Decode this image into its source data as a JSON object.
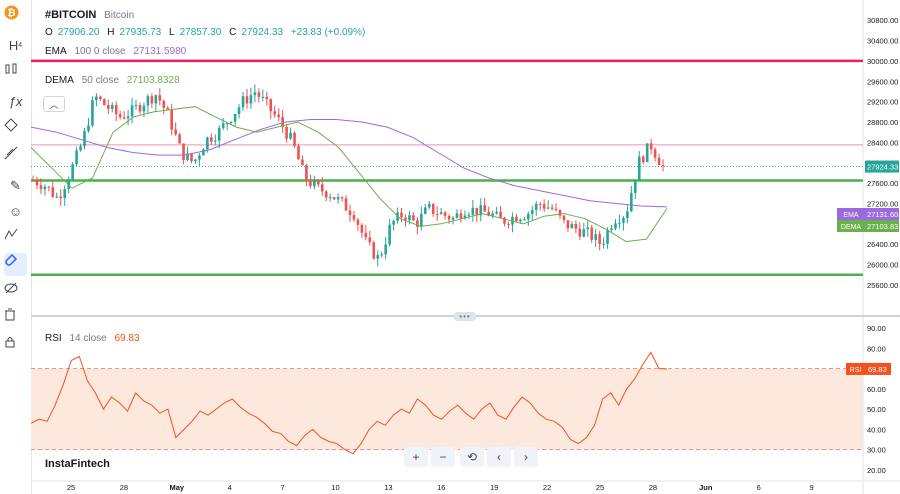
{
  "legend": {
    "symbol": "#BITCOIN",
    "name": "Bitcoin",
    "o_label": "O",
    "o": "27906.20",
    "h_label": "H",
    "h": "27935.73",
    "l_label": "L",
    "l": "27857.30",
    "c_label": "C",
    "c": "27924.33",
    "change": "+23.83 (+0.09%)",
    "ema_label": "EMA",
    "ema_params": "100 0 close",
    "ema_value": "27131.5980",
    "dema_label": "DEMA",
    "dema_params": "50 close",
    "dema_value": "27103.8328",
    "rsi_label": "RSI",
    "rsi_params": "14 close",
    "rsi_value": "69.83"
  },
  "price_badges": {
    "last": "27924.33",
    "ema_tag": "EMA",
    "ema": "27131.60",
    "dema_tag": "DEMA",
    "dema": "27103.83",
    "rsi_tag": "RSI",
    "rsi": "69.83"
  },
  "watermark": "InstaFintech",
  "toolbar_icons": [
    "bitcoin-logo-icon",
    "h4-icon",
    "candles-icon",
    "fx-icon",
    "nodes-icon",
    "crosshair-icon",
    "brush-icon",
    "emoji-icon",
    "measure-icon",
    "magnet-icon",
    "eye-off-icon",
    "trash-icon",
    "lock-icon"
  ],
  "nav_buttons": {
    "zoom_in": "+",
    "zoom_out": "−",
    "reset": "⟲",
    "left": "‹",
    "right": "›"
  },
  "colors": {
    "up": "#26a69a",
    "down": "#ef5350",
    "ema": "#9c6ade",
    "dema": "#6ab04c",
    "level_red": "#e91e63",
    "level_green": "#4caf50",
    "rsi": "#f4511e",
    "rsi_band": "#fce8dc"
  },
  "chart_data": [
    {
      "type": "candlestick",
      "symbol": "#BITCOIN",
      "y_ticks": [
        30800,
        30400,
        30000,
        29600,
        29200,
        28800,
        28400,
        28000,
        27600,
        27200,
        26800,
        26400,
        26000,
        25600
      ],
      "ylim": [
        25500,
        31000
      ],
      "x_ticks": [
        "25",
        "28",
        "May",
        "4",
        "7",
        "10",
        "13",
        "16",
        "19",
        "22",
        "25",
        "28",
        "Jun",
        "6",
        "9"
      ],
      "horizontal_levels": [
        {
          "value": 30000,
          "color": "#e91e63"
        },
        {
          "value": 28350,
          "color": "#f48fb1"
        },
        {
          "value": 27650,
          "color": "#4caf50"
        },
        {
          "value": 25800,
          "color": "#4caf50"
        }
      ],
      "close_path": [
        27660,
        27550,
        27300,
        27800,
        28400,
        29300,
        29100,
        28900,
        29000,
        29200,
        29350,
        28900,
        28200,
        28000,
        28450,
        28600,
        28900,
        29200,
        29400,
        29100,
        28800,
        28400,
        27700,
        27500,
        27400,
        27200,
        27000,
        26400,
        26100,
        26800,
        27000,
        26800,
        27100,
        27000,
        26900,
        27100,
        27050,
        27000,
        26850,
        26950,
        27000,
        27200,
        27100,
        26800,
        26700,
        26600,
        26400,
        26900,
        27000,
        28000,
        28350,
        27924.33
      ],
      "ema": [
        28700,
        28600,
        28450,
        28300,
        28200,
        28150,
        28150,
        28250,
        28450,
        28650,
        28800,
        28850,
        28850,
        28800,
        28700,
        28500,
        28200,
        27900,
        27700,
        27550,
        27450,
        27350,
        27250,
        27200,
        27150,
        27131.6
      ],
      "dema": [
        28300,
        27900,
        27500,
        27700,
        28600,
        28900,
        29000,
        29050,
        29100,
        28900,
        28700,
        28600,
        28700,
        28800,
        28600,
        28300,
        27800,
        27300,
        26900,
        26750,
        26800,
        26900,
        27000,
        26900,
        26800,
        26950,
        27000,
        26900,
        26700,
        26450,
        26500,
        27103.83
      ]
    },
    {
      "type": "line",
      "name": "RSI",
      "y_ticks": [
        90,
        80,
        70,
        60,
        50,
        40,
        30,
        20
      ],
      "ylim": [
        16,
        93
      ],
      "bands": [
        30,
        70
      ],
      "values": [
        43,
        45,
        44,
        52,
        62,
        74,
        76,
        64,
        58,
        50,
        56,
        53,
        49,
        58,
        54,
        52,
        48,
        50,
        36,
        40,
        44,
        49,
        47,
        50,
        53,
        55,
        51,
        48,
        46,
        43,
        39,
        38,
        34,
        32,
        37,
        40,
        36,
        34,
        33,
        30,
        28,
        33,
        40,
        44,
        42,
        47,
        50,
        48,
        55,
        52,
        47,
        45,
        49,
        52,
        48,
        45,
        50,
        53,
        47,
        45,
        51,
        56,
        53,
        48,
        45,
        44,
        41,
        35,
        33,
        36,
        42,
        55,
        58,
        52,
        60,
        65,
        72,
        78,
        70,
        69.83
      ]
    }
  ]
}
